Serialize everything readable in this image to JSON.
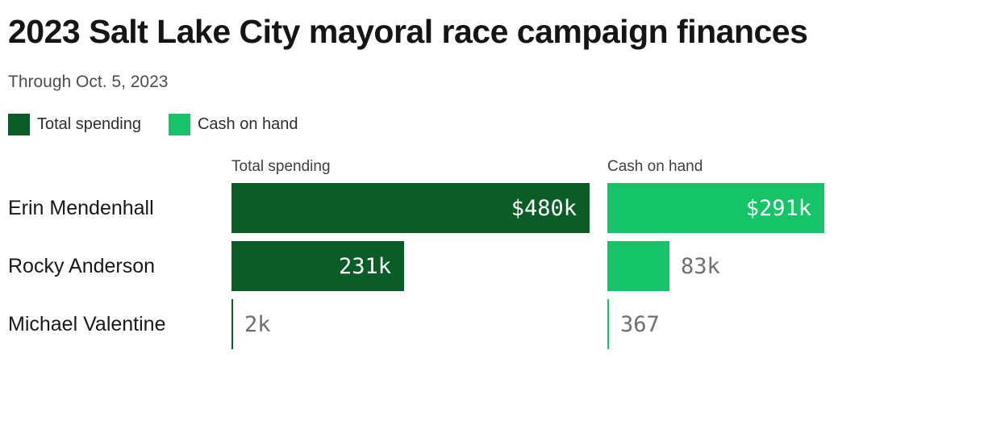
{
  "header": {
    "title": "2023 Salt Lake City mayoral race campaign finances",
    "subtitle": "Through Oct. 5, 2023"
  },
  "chart_data": {
    "type": "bar",
    "orientation": "horizontal",
    "title": "2023 Salt Lake City mayoral race campaign finances",
    "subtitle": "Through Oct. 5, 2023",
    "grid": false,
    "legend_position": "top-left",
    "xmax_k": 480,
    "categories": [
      "Erin Mendenhall",
      "Rocky Anderson",
      "Michael Valentine"
    ],
    "series": [
      {
        "name": "Total spending",
        "color": "#0b5d28",
        "values_k": [
          480,
          231,
          2
        ],
        "labels": [
          "$480k",
          "231k",
          "2k"
        ]
      },
      {
        "name": "Cash on hand",
        "color": "#14c466",
        "values_k": [
          291,
          83,
          0.367
        ],
        "labels": [
          "$291k",
          "83k",
          "367"
        ]
      }
    ]
  }
}
